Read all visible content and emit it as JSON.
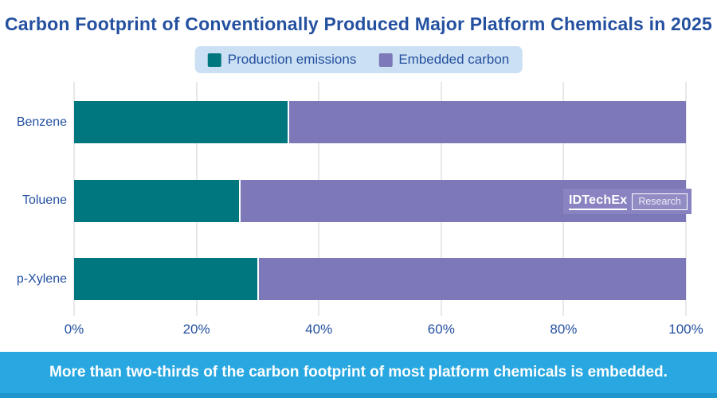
{
  "title": "Carbon Footprint of Conventionally Produced Major Platform Chemicals in 2025",
  "legend": {
    "items": [
      {
        "label": "Production emissions",
        "color": "#00767F"
      },
      {
        "label": "Embedded carbon",
        "color": "#7D78B7"
      }
    ]
  },
  "watermark": {
    "brand": "IDTechEx",
    "suffix": "Research"
  },
  "footer": {
    "text": "More than two-thirds of the carbon footprint of most platform chemicals is embedded.",
    "bg": "#29A7E0"
  },
  "colors": {
    "production": "#00767F",
    "embedded": "#7D78B7",
    "text_navy": "#2450A0",
    "legend_bg": "#CBE0F3",
    "gridline": "#E8E8E8",
    "banner": "#29A7E0"
  },
  "chart_data": {
    "type": "bar",
    "orientation": "horizontal",
    "stacked": true,
    "title": "Carbon Footprint of Conventionally Produced Major Platform Chemicals in 2025",
    "categories": [
      "Benzene",
      "Toluene",
      "p-Xylene"
    ],
    "series": [
      {
        "name": "Production emissions",
        "color": "#00767F",
        "values": [
          35,
          27,
          30
        ]
      },
      {
        "name": "Embedded carbon",
        "color": "#7D78B7",
        "values": [
          65,
          73,
          70
        ]
      }
    ],
    "x_tick_labels": [
      "0%",
      "20%",
      "40%",
      "60%",
      "80%",
      "100%"
    ],
    "xlim": [
      0,
      100
    ],
    "grid": true,
    "legend_position": "top",
    "annotation": "More than two-thirds of the carbon footprint of most platform chemicals is embedded."
  }
}
